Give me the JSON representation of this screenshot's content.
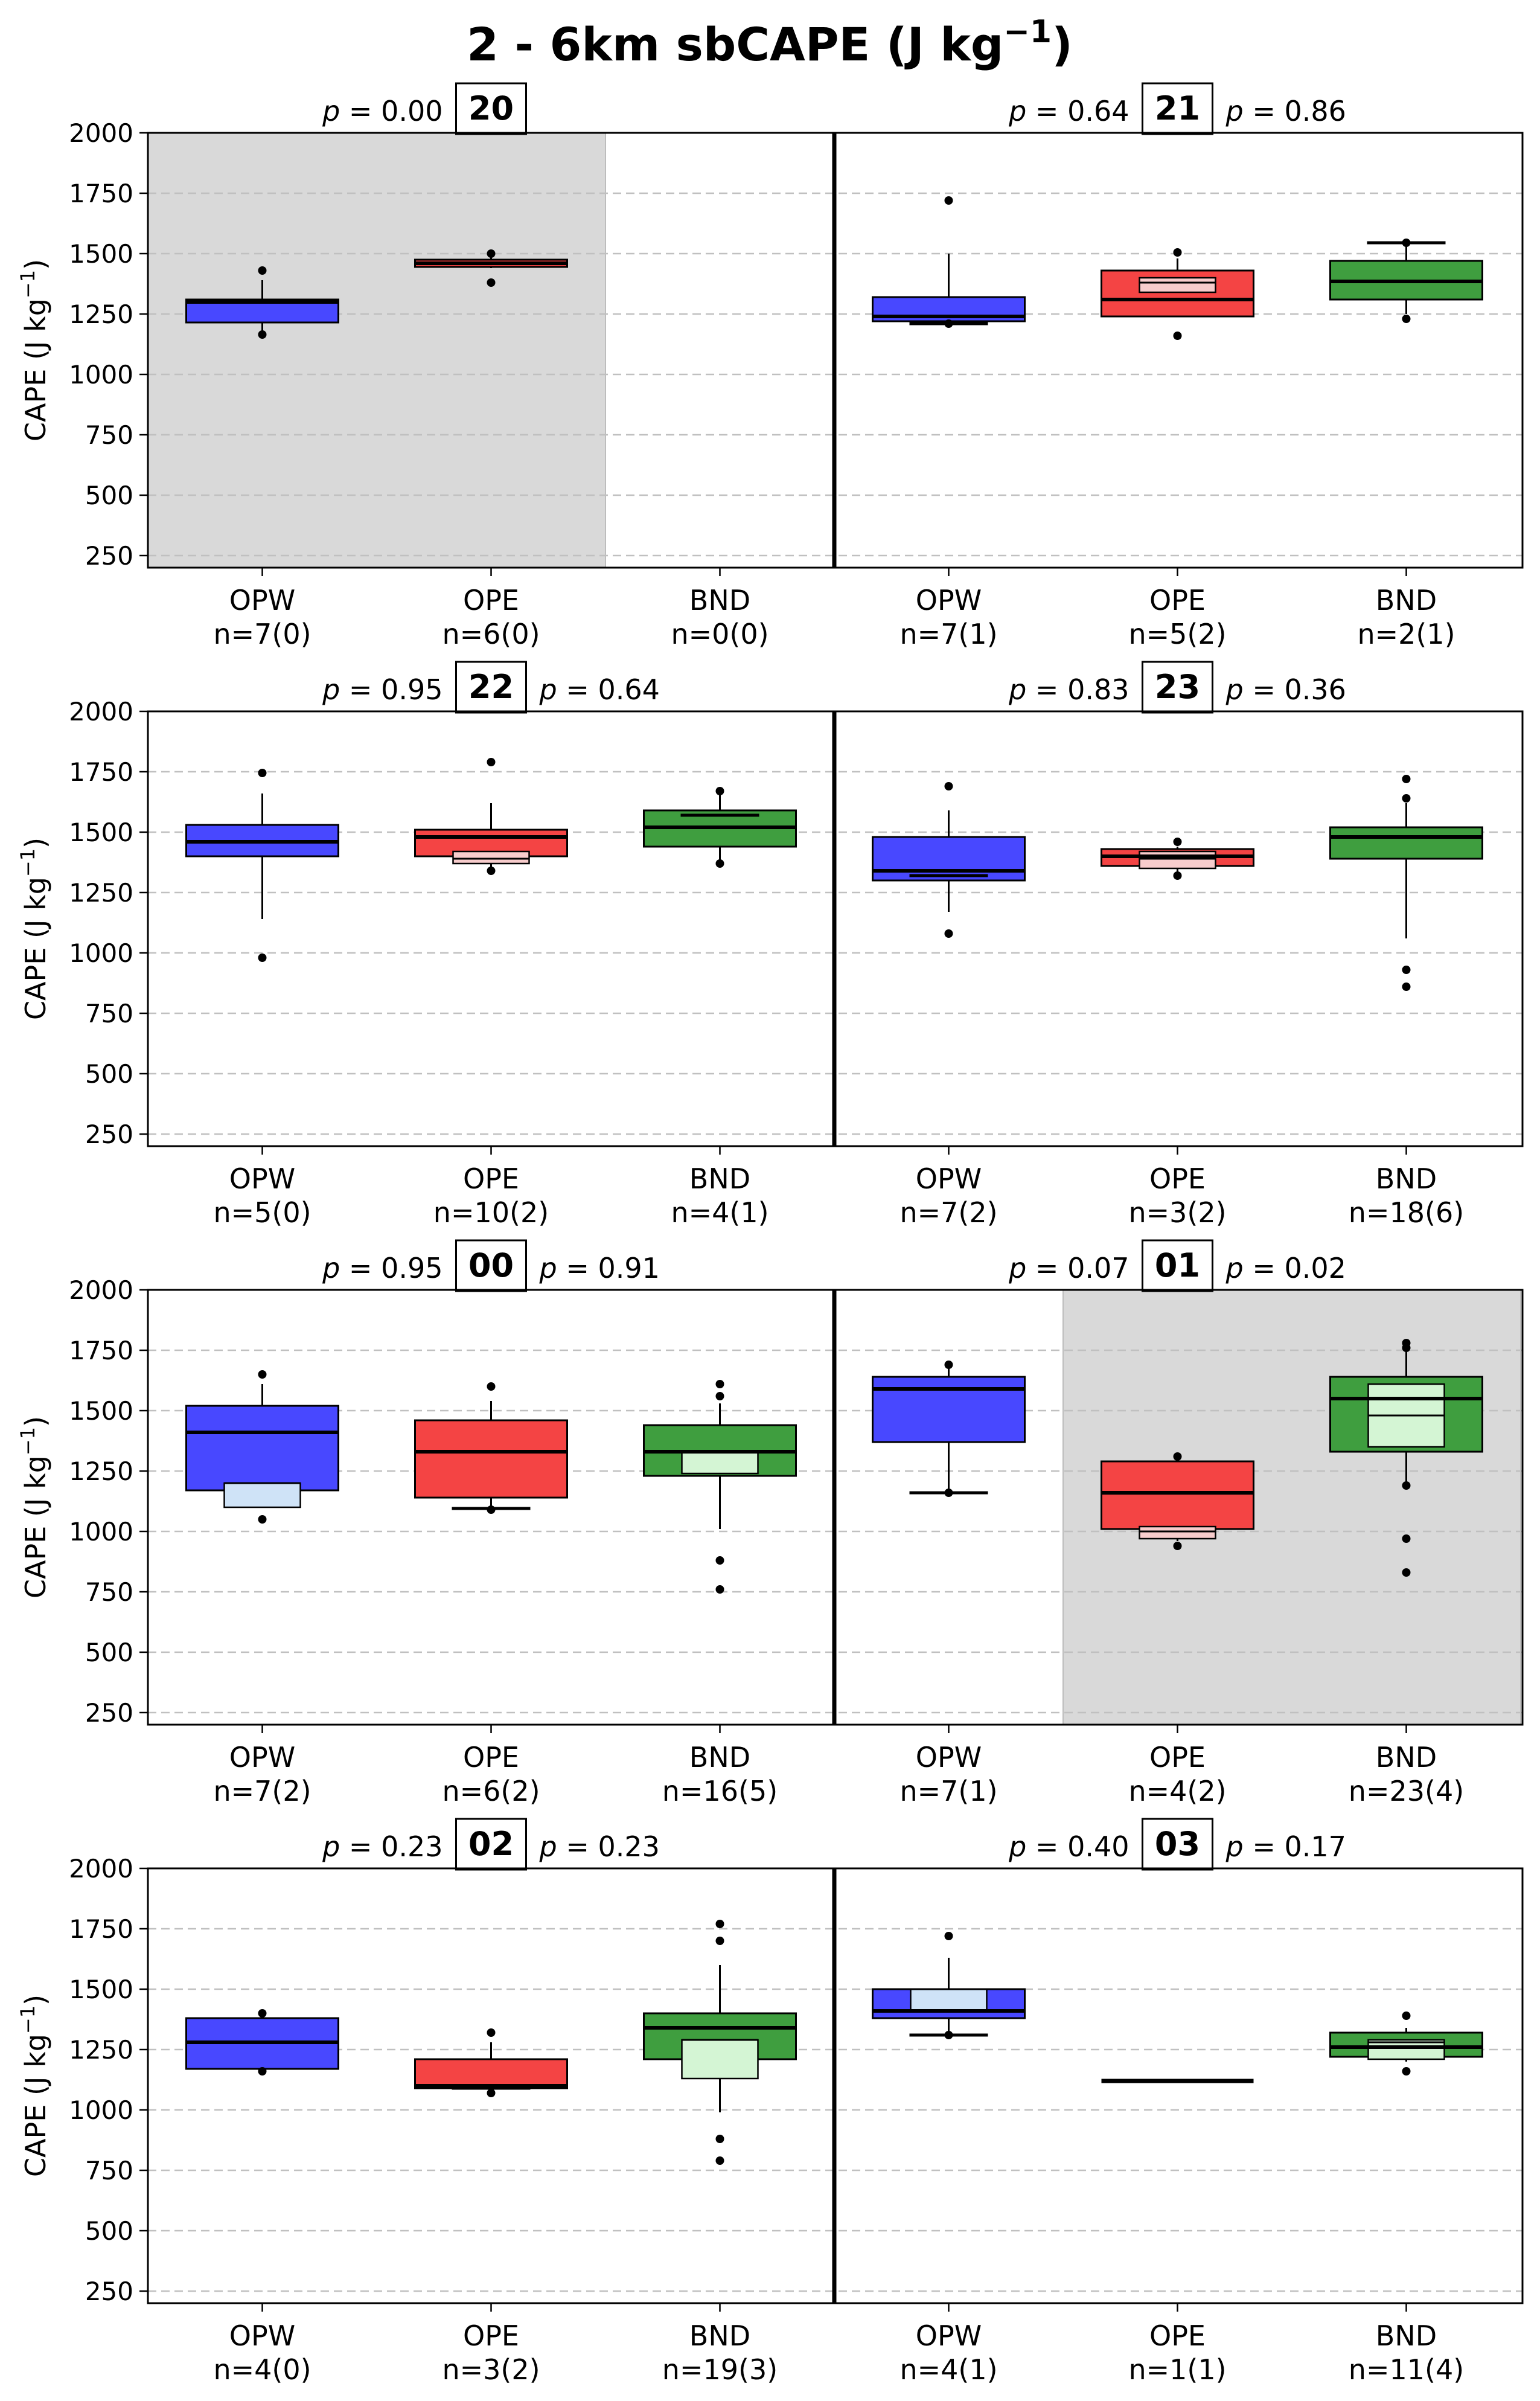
{
  "title_main": "2 - 6km sbCAPE (J kg",
  "title_sup": "−1",
  "title_close": ")",
  "ylabel_main": "CAPE (J kg",
  "ylabel_sup": "−1",
  "ylabel_close": ")",
  "p_symbol": "p",
  "colors": {
    "OPW": "#4848ff",
    "OPE": "#f44444",
    "BND": "#3f9e3f",
    "OPW_inner": "#cfe3f7",
    "OPE_inner": "#f7cccc",
    "BND_inner": "#d4f5d4",
    "shade": "#d9d9d9",
    "grid": "#c0c0c0"
  },
  "chart_data": {
    "type": "box",
    "ylim": [
      200,
      2000
    ],
    "yticks": [
      "250",
      "500",
      "750",
      "1000",
      "1250",
      "1500",
      "1750",
      "2000"
    ],
    "grid": "horizontal-dashed",
    "categories": [
      "OPW",
      "OPE",
      "BND"
    ],
    "panels": [
      {
        "hours": [
          {
            "label": "20",
            "p_left": "0.00",
            "p_right": null,
            "shaded": true,
            "groups": [
              {
                "name": "OPW",
                "n": "n=7(0)",
                "box": [
                  1215,
                  1310
                ],
                "median": 1300,
                "whiskers": [
                  1170,
                  1390
                ],
                "outliers": [
                  1165,
                  1430
                ]
              },
              {
                "name": "OPE",
                "n": "n=6(0)",
                "box": [
                  1445,
                  1475
                ],
                "median": 1460,
                "whiskers": [
                  1440,
                  1490
                ],
                "outliers": [
                  1380,
                  1500
                ]
              },
              {
                "name": "BND",
                "n": "n=0(0)"
              }
            ]
          },
          {
            "label": "21",
            "p_left": "0.64",
            "p_right": "0.86",
            "shaded": false,
            "groups": [
              {
                "name": "OPW",
                "n": "n=7(1)",
                "box": [
                  1220,
                  1320
                ],
                "median": 1240,
                "whiskers": [
                  1210,
                  1500
                ],
                "outliers": [
                  1210,
                  1720
                ],
                "cap": 1210
              },
              {
                "name": "OPE",
                "n": "n=5(2)",
                "box": [
                  1240,
                  1430
                ],
                "median": 1310,
                "whiskers": [
                  1240,
                  1480
                ],
                "outliers": [
                  1160,
                  1505
                ],
                "inner": {
                  "box": [
                    1340,
                    1400
                  ],
                  "median": 1380
                }
              },
              {
                "name": "BND",
                "n": "n=2(1)",
                "box": [
                  1310,
                  1470
                ],
                "median": 1385,
                "whiskers": [
                  1250,
                  1545
                ],
                "outliers": [
                  1230,
                  1545
                ],
                "cap": 1545
              }
            ]
          }
        ]
      },
      {
        "hours": [
          {
            "label": "22",
            "p_left": "0.95",
            "p_right": "0.64",
            "shaded": false,
            "groups": [
              {
                "name": "OPW",
                "n": "n=5(0)",
                "box": [
                  1400,
                  1530
                ],
                "median": 1460,
                "whiskers": [
                  1140,
                  1660
                ],
                "outliers": [
                  980,
                  1745
                ]
              },
              {
                "name": "OPE",
                "n": "n=10(2)",
                "box": [
                  1400,
                  1510
                ],
                "median": 1480,
                "whiskers": [
                  1340,
                  1620
                ],
                "outliers": [
                  1340,
                  1790
                ],
                "inner": {
                  "box": [
                    1370,
                    1420
                  ],
                  "median": 1390
                }
              },
              {
                "name": "BND",
                "n": "n=4(1)",
                "box": [
                  1440,
                  1590
                ],
                "median": 1520,
                "whiskers": [
                  1370,
                  1660
                ],
                "outliers": [
                  1370,
                  1670
                ],
                "cap": 1570
              }
            ]
          },
          {
            "label": "23",
            "p_left": "0.83",
            "p_right": "0.36",
            "shaded": false,
            "groups": [
              {
                "name": "OPW",
                "n": "n=7(2)",
                "box": [
                  1300,
                  1480
                ],
                "median": 1340,
                "whiskers": [
                  1170,
                  1590
                ],
                "outliers": [
                  1080,
                  1690
                ],
                "cap": 1320
              },
              {
                "name": "OPE",
                "n": "n=3(2)",
                "box": [
                  1360,
                  1430
                ],
                "median": 1400,
                "whiskers": [
                  1320,
                  1440
                ],
                "outliers": [
                  1320,
                  1460
                ],
                "inner": {
                  "box": [
                    1350,
                    1420
                  ],
                  "median": 1390
                }
              },
              {
                "name": "BND",
                "n": "n=18(6)",
                "box": [
                  1390,
                  1520
                ],
                "median": 1480,
                "whiskers": [
                  1060,
                  1620
                ],
                "outliers": [
                  860,
                  930,
                  1640,
                  1720
                ]
              }
            ]
          }
        ]
      },
      {
        "hours": [
          {
            "label": "00",
            "p_left": "0.95",
            "p_right": "0.91",
            "shaded": false,
            "groups": [
              {
                "name": "OPW",
                "n": "n=7(2)",
                "box": [
                  1170,
                  1520
                ],
                "median": 1410,
                "whiskers": [
                  1100,
                  1610
                ],
                "outliers": [
                  1050,
                  1650
                ],
                "inner": {
                  "box": [
                    1100,
                    1200
                  ],
                  "median": 1200
                }
              },
              {
                "name": "OPE",
                "n": "n=6(2)",
                "box": [
                  1140,
                  1460
                ],
                "median": 1330,
                "whiskers": [
                  1090,
                  1540
                ],
                "outliers": [
                  1090,
                  1600
                ],
                "cap": 1095
              },
              {
                "name": "BND",
                "n": "n=16(5)",
                "box": [
                  1230,
                  1440
                ],
                "median": 1330,
                "whiskers": [
                  1010,
                  1530
                ],
                "outliers": [
                  760,
                  880,
                  1560,
                  1610
                ],
                "inner": {
                  "box": [
                    1240,
                    1330
                  ],
                  "median": 1330
                }
              }
            ]
          },
          {
            "label": "01",
            "p_left": "0.07",
            "p_right": "0.02",
            "shaded_from": 1,
            "groups": [
              {
                "name": "OPW",
                "n": "n=7(1)",
                "box": [
                  1370,
                  1640
                ],
                "median": 1590,
                "whiskers": [
                  1160,
                  1680
                ],
                "outliers": [
                  1160,
                  1690
                ],
                "cap": 1160
              },
              {
                "name": "OPE",
                "n": "n=4(2)",
                "box": [
                  1010,
                  1290
                ],
                "median": 1160,
                "whiskers": [
                  960,
                  1310
                ],
                "outliers": [
                  940,
                  1310
                ],
                "inner": {
                  "box": [
                    970,
                    1020
                  ],
                  "median": 1000
                }
              },
              {
                "name": "BND",
                "n": "n=23(4)",
                "box": [
                  1330,
                  1640
                ],
                "median": 1550,
                "whiskers": [
                  1190,
                  1760
                ],
                "outliers": [
                  830,
                  970,
                  1190,
                  1760,
                  1780
                ],
                "inner": {
                  "box": [
                    1350,
                    1610
                  ],
                  "median": 1480
                }
              }
            ]
          }
        ]
      },
      {
        "hours": [
          {
            "label": "02",
            "p_left": "0.23",
            "p_right": "0.23",
            "shaded": false,
            "groups": [
              {
                "name": "OPW",
                "n": "n=4(0)",
                "box": [
                  1170,
                  1380
                ],
                "median": 1280,
                "whiskers": [
                  1160,
                  1400
                ],
                "outliers": [
                  1160,
                  1400
                ]
              },
              {
                "name": "OPE",
                "n": "n=3(2)",
                "box": [
                  1090,
                  1210
                ],
                "median": 1100,
                "whiskers": [
                  1070,
                  1280
                ],
                "outliers": [
                  1070,
                  1320
                ],
                "cap": 1090
              },
              {
                "name": "BND",
                "n": "n=19(3)",
                "box": [
                  1210,
                  1400
                ],
                "median": 1340,
                "whiskers": [
                  990,
                  1600
                ],
                "outliers": [
                  790,
                  880,
                  1700,
                  1770
                ],
                "inner": {
                  "box": [
                    1130,
                    1290
                  ],
                  "median": 1290
                }
              }
            ]
          },
          {
            "label": "03",
            "p_left": "0.40",
            "p_right": "0.17",
            "shaded": false,
            "groups": [
              {
                "name": "OPW",
                "n": "n=4(1)",
                "box": [
                  1380,
                  1500
                ],
                "median": 1410,
                "whiskers": [
                  1310,
                  1630
                ],
                "outliers": [
                  1310,
                  1720
                ],
                "cap": 1310,
                "inner": {
                  "box": [
                    1410,
                    1500
                  ],
                  "median": 1500
                }
              },
              {
                "name": "OPE",
                "n": "n=1(1)",
                "line": 1120
              },
              {
                "name": "BND",
                "n": "n=11(4)",
                "box": [
                  1220,
                  1320
                ],
                "median": 1260,
                "whiskers": [
                  1200,
                  1340
                ],
                "outliers": [
                  1160,
                  1390
                ],
                "inner": {
                  "box": [
                    1210,
                    1290
                  ],
                  "median": 1280
                }
              }
            ]
          }
        ]
      }
    ]
  }
}
